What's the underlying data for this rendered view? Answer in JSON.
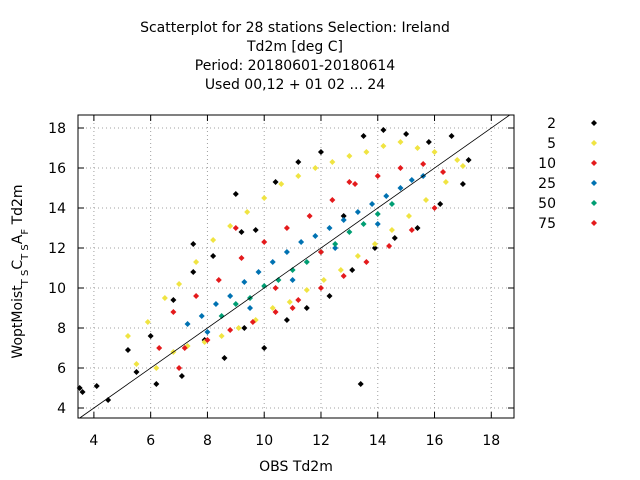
{
  "chart_data": {
    "type": "scatter",
    "title_lines": [
      "Scatterplot for   28 stations Selection: Ireland",
      "Td2m [deg C]",
      "Period: 20180601-20180614",
      "Used  00,12  + 01 02 ... 24"
    ],
    "xlabel": "OBS Td2m",
    "ylabel_parts": [
      "WoptMoist",
      "T S",
      "C",
      "T S",
      "A",
      "F",
      " Td2m"
    ],
    "xlim": [
      3.44,
      18.8
    ],
    "ylim": [
      3.5,
      18.65
    ],
    "xticks": [
      4,
      6,
      8,
      10,
      12,
      14,
      16,
      18
    ],
    "yticks": [
      4,
      6,
      8,
      10,
      12,
      14,
      16,
      18
    ],
    "grid": true,
    "diagonal": true,
    "legend": "right",
    "series": [
      {
        "name": "2",
        "color": "#000000",
        "x": [
          3.5,
          3.6,
          4.1,
          4.5,
          5.2,
          5.5,
          6,
          6.2,
          6.8,
          7.1,
          7.5,
          7.9,
          8.2,
          8.6,
          9,
          9.3,
          9.7,
          10,
          10.4,
          10.8,
          11.2,
          11.5,
          12,
          12.3,
          12.8,
          13.1,
          13.5,
          13.9,
          14.2,
          14.6,
          15,
          15.4,
          15.8,
          16.2,
          16.6,
          17,
          7.5,
          9.2,
          13.4,
          17.2
        ],
        "values": [
          5.0,
          4.8,
          5.1,
          4.4,
          6.9,
          5.8,
          7.6,
          5.2,
          9.4,
          5.6,
          10.8,
          7.4,
          11.6,
          6.5,
          14.7,
          8.0,
          12.9,
          7.0,
          15.3,
          8.4,
          16.3,
          9.0,
          16.8,
          9.6,
          13.6,
          10.9,
          17.6,
          12.0,
          17.9,
          12.5,
          17.7,
          13.0,
          17.3,
          14.2,
          17.6,
          15.2,
          12.2,
          12.8,
          5.2,
          16.4
        ]
      },
      {
        "name": "5",
        "color": "#f0e442",
        "x": [
          5.2,
          5.5,
          5.9,
          6.2,
          6.5,
          6.8,
          7.0,
          7.3,
          7.6,
          7.9,
          8.2,
          8.5,
          8.8,
          9.1,
          9.4,
          9.7,
          10,
          10.3,
          10.6,
          10.9,
          11.2,
          11.5,
          11.8,
          12.1,
          12.4,
          12.7,
          13,
          13.3,
          13.6,
          13.9,
          14.2,
          14.5,
          14.8,
          15.1,
          15.4,
          15.7,
          16,
          16.4,
          16.8,
          17
        ],
        "values": [
          7.6,
          6.2,
          8.3,
          6.0,
          9.5,
          6.8,
          10.2,
          7.1,
          11.3,
          7.3,
          12.4,
          7.6,
          13.1,
          8.0,
          13.8,
          8.4,
          14.5,
          9.0,
          15.2,
          9.3,
          15.6,
          9.9,
          16.0,
          10.4,
          16.3,
          10.9,
          16.6,
          11.6,
          16.8,
          12.2,
          17.1,
          12.9,
          17.3,
          13.6,
          17.0,
          14.4,
          16.8,
          15.3,
          16.4,
          16.1
        ]
      },
      {
        "name": "10",
        "color": "#e41a1c",
        "x": [
          6.3,
          6.8,
          7.2,
          7.6,
          8.0,
          8.4,
          8.8,
          9.2,
          9.6,
          10,
          10.4,
          10.8,
          11.2,
          11.6,
          12,
          12.4,
          12.8,
          13.2,
          13.6,
          14,
          14.4,
          14.8,
          15.2,
          15.6,
          16,
          16.3,
          7.0,
          9.0,
          11.0,
          13.0
        ],
        "values": [
          7.0,
          8.8,
          7.0,
          9.6,
          7.4,
          10.4,
          7.9,
          11.5,
          8.3,
          12.3,
          8.8,
          13.0,
          9.4,
          13.6,
          10.0,
          14.4,
          10.6,
          15.2,
          11.3,
          15.6,
          12.1,
          16.0,
          12.9,
          16.2,
          14.0,
          15.8,
          6.0,
          13.0,
          9.0,
          15.3
        ]
      },
      {
        "name": "25",
        "color": "#0072b2",
        "x": [
          7.3,
          7.8,
          8.3,
          8.8,
          9.3,
          9.8,
          10.3,
          10.8,
          11.3,
          11.8,
          12.3,
          12.8,
          13.3,
          13.8,
          14.3,
          14.8,
          15.2,
          15.6,
          8.0,
          9.5,
          11.0,
          12.5,
          14.0
        ],
        "values": [
          8.2,
          8.6,
          9.2,
          9.6,
          10.3,
          10.8,
          11.3,
          11.8,
          12.3,
          12.6,
          13.0,
          13.4,
          13.8,
          14.2,
          14.6,
          15.0,
          15.4,
          15.6,
          7.8,
          9.0,
          10.4,
          12.0,
          13.2
        ]
      },
      {
        "name": "50",
        "color": "#009e73",
        "x": [
          8.5,
          9,
          9.5,
          10,
          10.5,
          11,
          11.5,
          12,
          12.5,
          13,
          13.5,
          14,
          14.5
        ],
        "values": [
          8.6,
          9.2,
          9.5,
          10.1,
          10.4,
          10.9,
          11.3,
          11.8,
          12.2,
          12.8,
          13.2,
          13.7,
          14.2
        ]
      },
      {
        "name": "75",
        "color": "#e41a1c",
        "x": [
          10.4,
          12.0
        ],
        "values": [
          10.0,
          11.8
        ]
      }
    ]
  }
}
